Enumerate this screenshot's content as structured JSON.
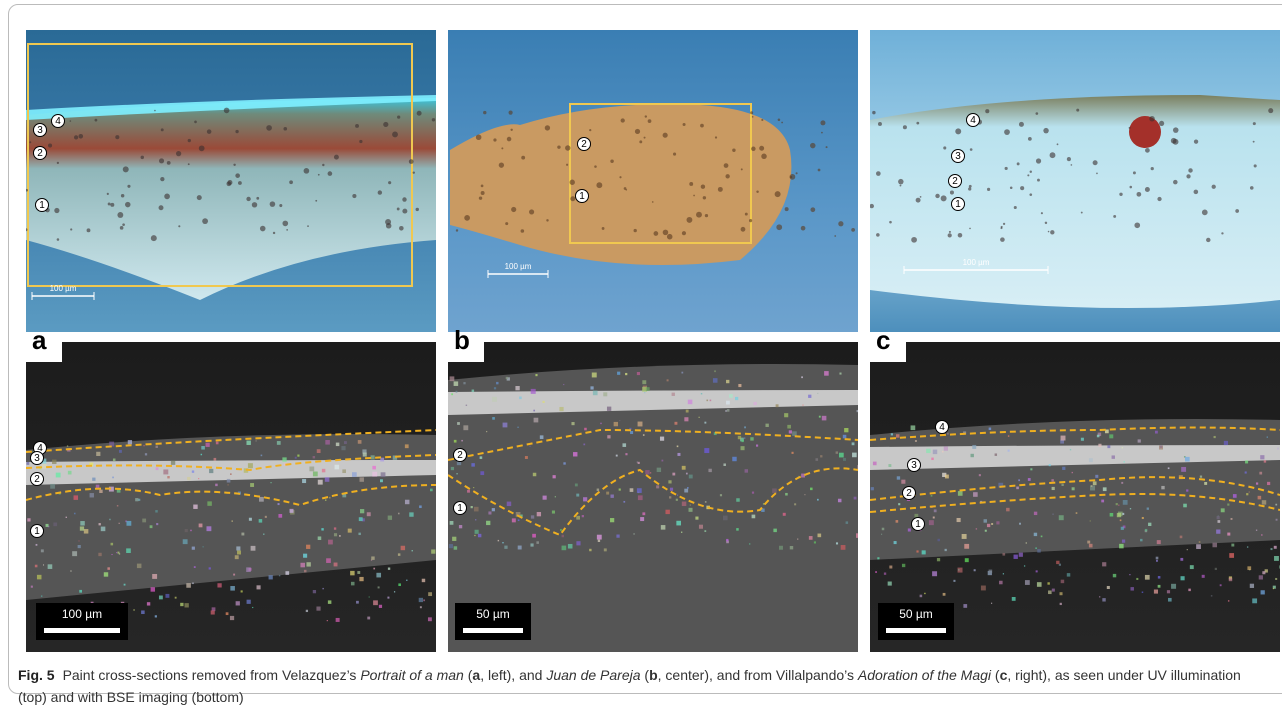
{
  "panels": [
    {
      "label": "a",
      "uv": {
        "scale_bar": "100 µm",
        "layers": [
          "4",
          "3",
          "2",
          "1"
        ]
      },
      "bse": {
        "scale_bar": "100 µm",
        "layers": [
          "4",
          "3",
          "2",
          "1"
        ]
      }
    },
    {
      "label": "b",
      "uv": {
        "scale_bar": "100 µm",
        "layers": [
          "2",
          "1"
        ]
      },
      "bse": {
        "scale_bar": "50 µm",
        "layers": [
          "2",
          "1"
        ]
      }
    },
    {
      "label": "c",
      "uv": {
        "scale_bar": "100 µm",
        "layers": [
          "4",
          "3",
          "2",
          "1"
        ]
      },
      "bse": {
        "scale_bar": "50 µm",
        "layers": [
          "4",
          "3",
          "2",
          "1"
        ]
      }
    }
  ],
  "caption": {
    "label": "Fig. 5",
    "parts": [
      "Paint cross-sections removed from Velazquez’s ",
      "Portrait of a man",
      " (",
      "a",
      ", left), and ",
      "Juan de Pareja",
      " (",
      "b",
      ", center), and from Villalpando’s ",
      "Adoration of the Magi",
      " (",
      "c",
      ", right), as seen under UV illumination (top) and with BSE imaging (bottom)"
    ]
  }
}
